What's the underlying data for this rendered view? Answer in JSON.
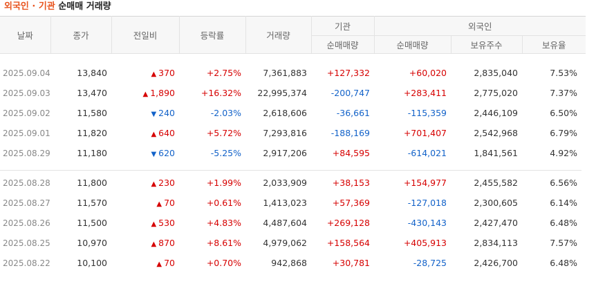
{
  "title": {
    "accent": "외국인 · 기관",
    "rest": "순매매 거래량"
  },
  "headers": {
    "date": "날짜",
    "close": "종가",
    "change": "전일비",
    "rate": "등락률",
    "volume": "거래량",
    "inst_group": "기관",
    "inst_net": "순매매량",
    "foreign_group": "외국인",
    "foreign_net": "순매매량",
    "foreign_hold": "보유주수",
    "foreign_ratio": "보유율"
  },
  "colors": {
    "up": "#d60000",
    "down": "#1262c9",
    "accent": "#e8541e"
  },
  "rows": [
    {
      "date": "2025.09.04",
      "close": "13,840",
      "dir": "up",
      "change": "370",
      "rate": "+2.75%",
      "volume": "7,361,883",
      "inst": "+127,332",
      "foreign": "+60,020",
      "hold": "2,835,040",
      "ratio": "7.53%"
    },
    {
      "date": "2025.09.03",
      "close": "13,470",
      "dir": "up",
      "change": "1,890",
      "rate": "+16.32%",
      "volume": "22,995,374",
      "inst": "-200,747",
      "foreign": "+283,411",
      "hold": "2,775,020",
      "ratio": "7.37%"
    },
    {
      "date": "2025.09.02",
      "close": "11,580",
      "dir": "down",
      "change": "240",
      "rate": "-2.03%",
      "volume": "2,618,606",
      "inst": "-36,661",
      "foreign": "-115,359",
      "hold": "2,446,109",
      "ratio": "6.50%"
    },
    {
      "date": "2025.09.01",
      "close": "11,820",
      "dir": "up",
      "change": "640",
      "rate": "+5.72%",
      "volume": "7,293,816",
      "inst": "-188,169",
      "foreign": "+701,407",
      "hold": "2,542,968",
      "ratio": "6.79%"
    },
    {
      "date": "2025.08.29",
      "close": "11,180",
      "dir": "down",
      "change": "620",
      "rate": "-5.25%",
      "volume": "2,917,206",
      "inst": "+84,595",
      "foreign": "-614,021",
      "hold": "1,841,561",
      "ratio": "4.92%"
    },
    {
      "date": "2025.08.28",
      "close": "11,800",
      "dir": "up",
      "change": "230",
      "rate": "+1.99%",
      "volume": "2,033,909",
      "inst": "+38,153",
      "foreign": "+154,977",
      "hold": "2,455,582",
      "ratio": "6.56%"
    },
    {
      "date": "2025.08.27",
      "close": "11,570",
      "dir": "up",
      "change": "70",
      "rate": "+0.61%",
      "volume": "1,413,023",
      "inst": "+57,369",
      "foreign": "-127,018",
      "hold": "2,300,605",
      "ratio": "6.14%"
    },
    {
      "date": "2025.08.26",
      "close": "11,500",
      "dir": "up",
      "change": "530",
      "rate": "+4.83%",
      "volume": "4,487,604",
      "inst": "+269,128",
      "foreign": "-430,143",
      "hold": "2,427,470",
      "ratio": "6.48%"
    },
    {
      "date": "2025.08.25",
      "close": "10,970",
      "dir": "up",
      "change": "870",
      "rate": "+8.61%",
      "volume": "4,979,062",
      "inst": "+158,564",
      "foreign": "+405,913",
      "hold": "2,834,113",
      "ratio": "7.57%"
    },
    {
      "date": "2025.08.22",
      "close": "10,100",
      "dir": "up",
      "change": "70",
      "rate": "+0.70%",
      "volume": "942,868",
      "inst": "+30,781",
      "foreign": "-28,725",
      "hold": "2,426,700",
      "ratio": "6.48%"
    }
  ]
}
